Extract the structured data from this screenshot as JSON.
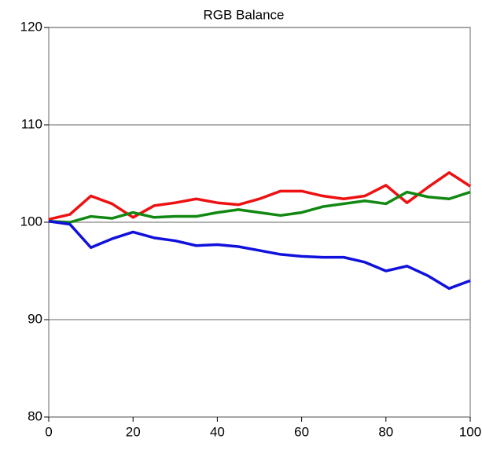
{
  "chart_data": {
    "type": "line",
    "title": "RGB Balance",
    "x": [
      0,
      5,
      10,
      15,
      20,
      25,
      30,
      35,
      40,
      45,
      50,
      55,
      60,
      65,
      70,
      75,
      80,
      85,
      90,
      95,
      100
    ],
    "series": [
      {
        "color": "#ee1111",
        "values": [
          100.3,
          100.8,
          102.7,
          101.9,
          100.5,
          101.7,
          102.0,
          102.4,
          102.0,
          101.8,
          102.4,
          103.2,
          103.2,
          102.7,
          102.4,
          102.7,
          103.8,
          102.0,
          103.6,
          105.1,
          103.7
        ]
      },
      {
        "color": "#118811",
        "values": [
          100.1,
          100.0,
          100.6,
          100.4,
          101.0,
          100.5,
          100.6,
          100.6,
          101.0,
          101.3,
          101.0,
          100.7,
          101.0,
          101.6,
          101.9,
          102.2,
          101.9,
          103.1,
          102.6,
          102.4,
          103.1
        ]
      },
      {
        "color": "#1111dd",
        "values": [
          100.1,
          99.8,
          97.4,
          98.3,
          99.0,
          98.4,
          98.1,
          97.6,
          97.7,
          97.5,
          97.1,
          96.7,
          96.5,
          96.4,
          96.4,
          95.9,
          95.0,
          95.5,
          94.5,
          93.2,
          94.0
        ]
      }
    ],
    "xlim": [
      0,
      100
    ],
    "xticks": [
      0,
      20,
      40,
      60,
      80,
      100
    ],
    "ylim": [
      80,
      120
    ],
    "yticks": [
      80,
      90,
      100,
      110,
      120
    ],
    "grid": true
  }
}
